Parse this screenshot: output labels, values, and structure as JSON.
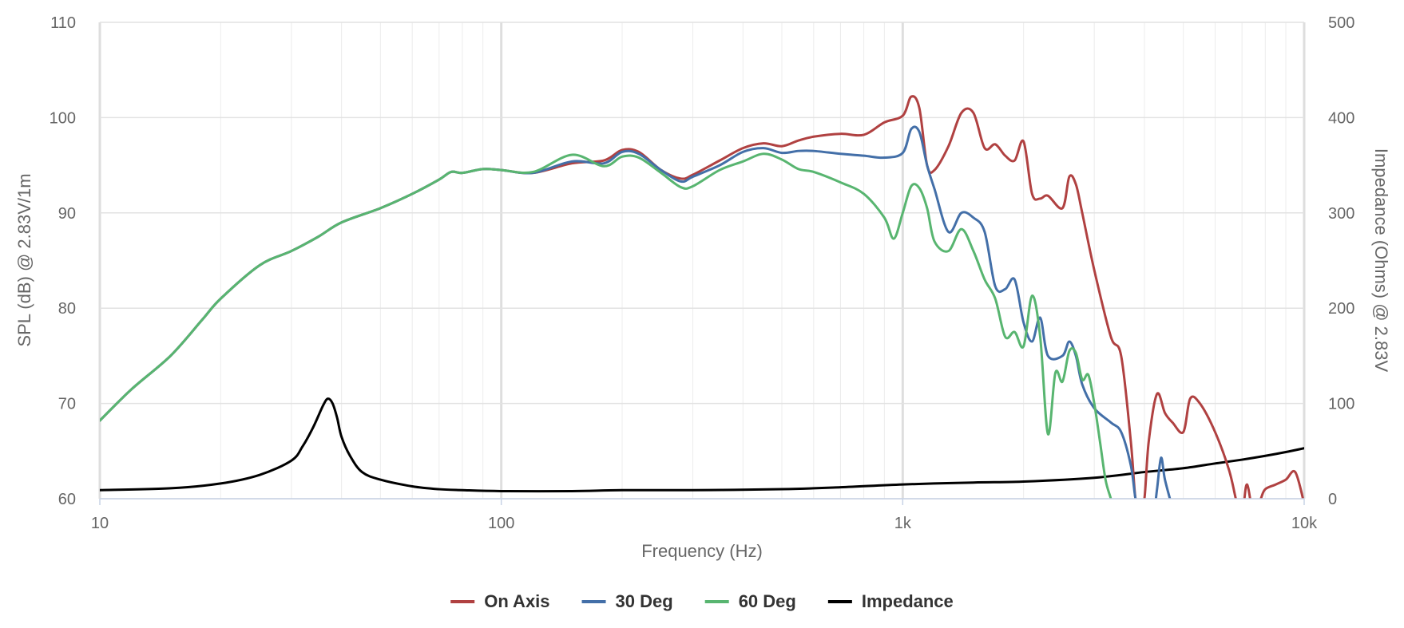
{
  "chart_data": {
    "type": "line",
    "title": "",
    "xlabel": "Frequency (Hz)",
    "ylabel": "SPL (dB) @ 2.83V/1m",
    "y2label": "Impedance (Ohms) @ 2.83V",
    "xscale": "log",
    "xlim": [
      10,
      10000
    ],
    "ylim": [
      60,
      110
    ],
    "y2lim": [
      0,
      500
    ],
    "grid": true,
    "legend_position": "bottom-center",
    "x_ticks": [
      {
        "value": 10,
        "label": "10"
      },
      {
        "value": 100,
        "label": "100"
      },
      {
        "value": 1000,
        "label": "1k"
      },
      {
        "value": 10000,
        "label": "10k"
      }
    ],
    "y_ticks": [
      {
        "value": 60,
        "label": "60"
      },
      {
        "value": 70,
        "label": "70"
      },
      {
        "value": 80,
        "label": "80"
      },
      {
        "value": 90,
        "label": "90"
      },
      {
        "value": 100,
        "label": "100"
      },
      {
        "value": 110,
        "label": "110"
      }
    ],
    "y2_ticks": [
      {
        "value": 0,
        "label": "0"
      },
      {
        "value": 100,
        "label": "100"
      },
      {
        "value": 200,
        "label": "200"
      },
      {
        "value": 300,
        "label": "300"
      },
      {
        "value": 400,
        "label": "400"
      },
      {
        "value": 500,
        "label": "500"
      }
    ],
    "series": [
      {
        "name": "On Axis",
        "color": "#b04141",
        "axis": "left",
        "x": [
          10,
          12,
          15,
          18,
          20,
          25,
          30,
          35,
          40,
          50,
          60,
          70,
          75,
          80,
          90,
          100,
          120,
          150,
          180,
          200,
          220,
          250,
          280,
          300,
          350,
          400,
          450,
          500,
          550,
          600,
          700,
          800,
          900,
          1000,
          1050,
          1100,
          1150,
          1200,
          1300,
          1400,
          1500,
          1600,
          1700,
          1800,
          1900,
          2000,
          2100,
          2200,
          2300,
          2500,
          2600,
          2700,
          2800,
          3000,
          3300,
          3500,
          3700,
          3800,
          3900,
          4000,
          4100,
          4300,
          4500,
          4700,
          5000,
          5200,
          5500,
          6000,
          6500,
          6800,
          7000,
          7200,
          7500,
          7800,
          8000,
          8500,
          9000,
          9500,
          10000
        ],
        "y": [
          68.2,
          71.5,
          75.0,
          78.8,
          81.0,
          84.5,
          86.0,
          87.5,
          89.0,
          90.5,
          92.0,
          93.5,
          94.3,
          94.2,
          94.6,
          94.5,
          94.2,
          95.2,
          95.5,
          96.6,
          96.4,
          94.5,
          93.6,
          94.0,
          95.5,
          96.8,
          97.3,
          97.0,
          97.6,
          98.0,
          98.3,
          98.2,
          99.5,
          100.2,
          102.2,
          101.0,
          95.0,
          94.5,
          97.0,
          100.5,
          100.5,
          96.8,
          97.2,
          96.0,
          95.5,
          97.5,
          92.0,
          91.5,
          91.8,
          90.5,
          93.8,
          93.0,
          90.0,
          84.0,
          77.0,
          75.0,
          66.0,
          60.0,
          59.0,
          60.0,
          66.0,
          71.0,
          69.0,
          68.0,
          67.0,
          70.5,
          70.0,
          67.0,
          63.0,
          59.5,
          58.0,
          61.5,
          58.0,
          60.0,
          61.0,
          61.5,
          62.0,
          62.8,
          59.5
        ]
      },
      {
        "name": "30 Deg",
        "color": "#436fa8",
        "axis": "left",
        "x": [
          10,
          12,
          15,
          18,
          20,
          25,
          30,
          35,
          40,
          50,
          60,
          70,
          75,
          80,
          90,
          100,
          120,
          150,
          180,
          200,
          220,
          250,
          280,
          300,
          350,
          400,
          450,
          500,
          550,
          600,
          700,
          800,
          900,
          1000,
          1050,
          1100,
          1150,
          1200,
          1300,
          1400,
          1500,
          1600,
          1700,
          1800,
          1900,
          2000,
          2100,
          2200,
          2300,
          2500,
          2600,
          2700,
          2800,
          3000,
          3300,
          3500,
          3700,
          3800,
          3900,
          4000,
          4200,
          4300,
          4400,
          4500,
          4700
        ],
        "y": [
          68.2,
          71.5,
          75.0,
          78.8,
          81.0,
          84.5,
          86.0,
          87.5,
          89.0,
          90.5,
          92.0,
          93.5,
          94.3,
          94.2,
          94.6,
          94.5,
          94.2,
          95.4,
          95.2,
          96.4,
          96.2,
          94.5,
          93.3,
          93.8,
          95.0,
          96.4,
          96.8,
          96.3,
          96.5,
          96.5,
          96.2,
          96.0,
          95.8,
          96.3,
          98.8,
          98.5,
          95.0,
          92.5,
          88.0,
          90.0,
          89.5,
          88.0,
          82.3,
          82.0,
          83.0,
          78.5,
          76.5,
          79.0,
          75.0,
          75.0,
          76.5,
          75.0,
          72.0,
          69.5,
          68.0,
          67.0,
          63.5,
          60.0,
          58.0,
          57.0,
          58.0,
          61.0,
          64.3,
          62.0,
          59.0
        ]
      },
      {
        "name": "60 Deg",
        "color": "#58b570",
        "axis": "left",
        "x": [
          10,
          12,
          15,
          18,
          20,
          25,
          30,
          35,
          40,
          50,
          60,
          70,
          75,
          80,
          90,
          100,
          120,
          150,
          180,
          200,
          220,
          250,
          280,
          300,
          350,
          400,
          450,
          500,
          550,
          600,
          700,
          800,
          900,
          950,
          1000,
          1050,
          1100,
          1150,
          1200,
          1300,
          1400,
          1500,
          1600,
          1700,
          1800,
          1900,
          2000,
          2100,
          2200,
          2300,
          2400,
          2500,
          2600,
          2700,
          2800,
          2900,
          3000,
          3100,
          3200,
          3300,
          3400,
          3500
        ],
        "y": [
          68.2,
          71.5,
          75.0,
          78.8,
          81.0,
          84.5,
          86.0,
          87.5,
          89.0,
          90.5,
          92.0,
          93.5,
          94.3,
          94.2,
          94.6,
          94.5,
          94.3,
          96.1,
          94.9,
          95.9,
          95.8,
          94.2,
          92.7,
          92.8,
          94.5,
          95.4,
          96.2,
          95.6,
          94.6,
          94.3,
          93.2,
          92.0,
          89.5,
          87.3,
          90.0,
          92.8,
          92.6,
          90.5,
          87.0,
          86.0,
          88.3,
          86.0,
          83.0,
          81.0,
          77.0,
          77.5,
          76.0,
          81.3,
          77.0,
          66.8,
          73.2,
          72.3,
          75.5,
          75.3,
          72.5,
          73.0,
          70.0,
          66.0,
          62.0,
          60.0,
          58.0,
          56.0
        ]
      },
      {
        "name": "Impedance",
        "color": "#000000",
        "axis": "right",
        "x": [
          10,
          15,
          20,
          25,
          30,
          32,
          34,
          36,
          37,
          38,
          39,
          40,
          42,
          45,
          50,
          60,
          70,
          80,
          100,
          150,
          200,
          300,
          500,
          700,
          1000,
          1500,
          2000,
          3000,
          4000,
          5000,
          6000,
          7000,
          8000,
          9000,
          10000
        ],
        "y": [
          9,
          11,
          16,
          25,
          40,
          55,
          75,
          98,
          105,
          100,
          85,
          65,
          45,
          28,
          20,
          13,
          10,
          9,
          8,
          8,
          9,
          9,
          10,
          12,
          15,
          17,
          18,
          22,
          28,
          32,
          37,
          41,
          45,
          49,
          53
        ]
      }
    ]
  }
}
